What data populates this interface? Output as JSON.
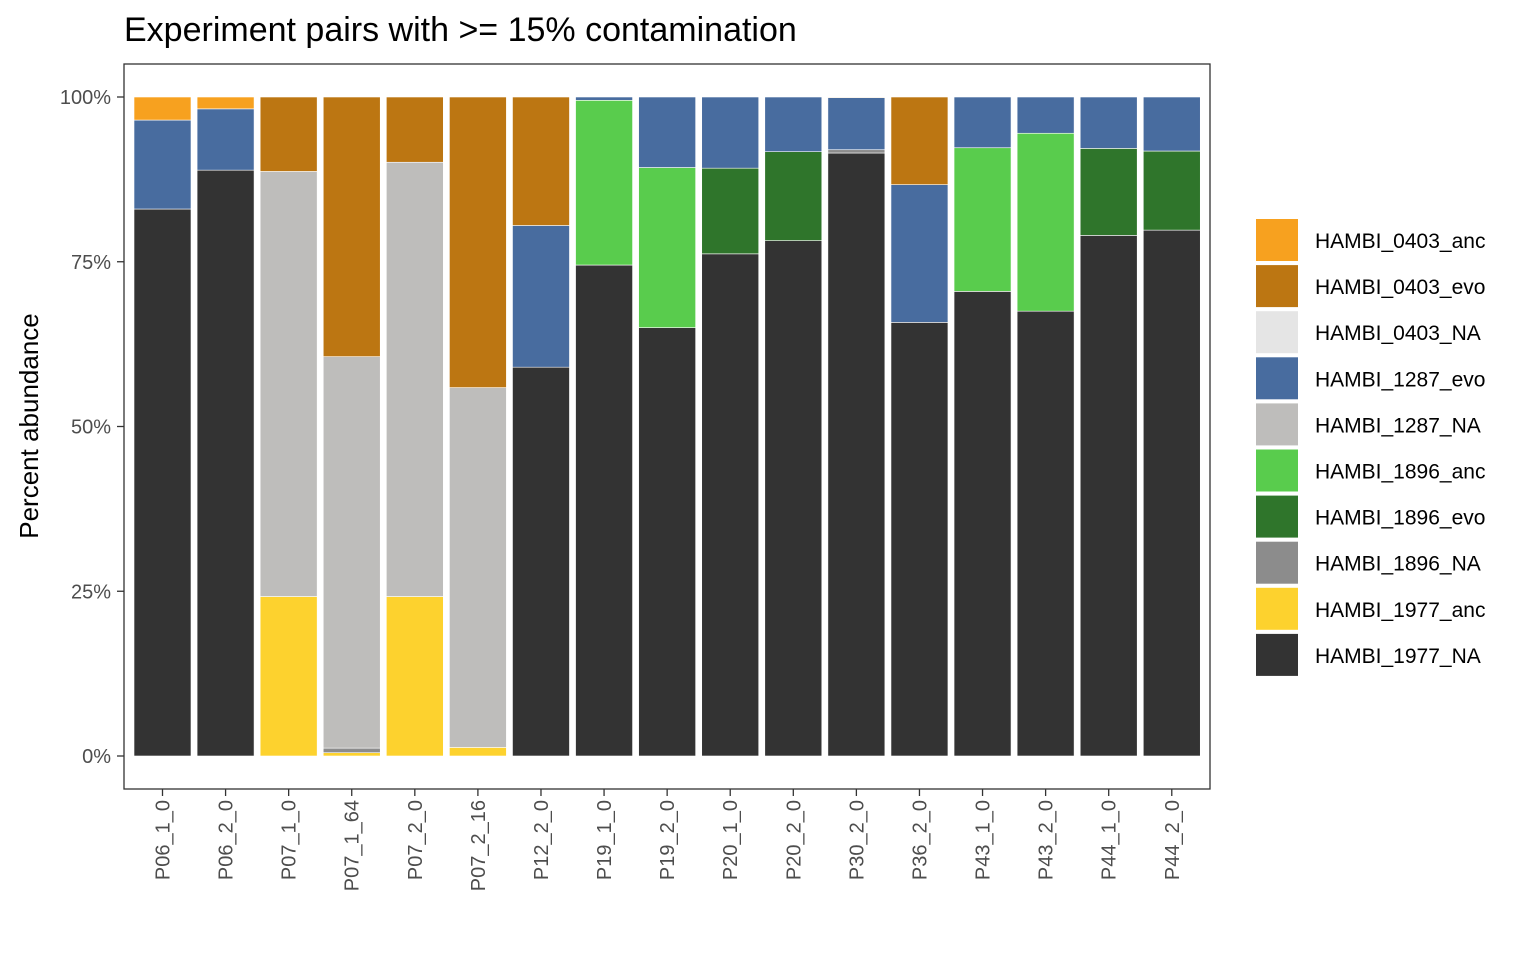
{
  "chart_data": {
    "type": "bar",
    "stacked": true,
    "title": "Experiment pairs with >= 15% contamination",
    "xlabel": "",
    "ylabel": "Percent abundance",
    "ylim": [
      0,
      100
    ],
    "y_ticks": [
      "0%",
      "25%",
      "50%",
      "75%",
      "100%"
    ],
    "y_tick_values": [
      0,
      25,
      50,
      75,
      100
    ],
    "legend_position": "right",
    "grid": false,
    "categories": [
      "P06_1_0",
      "P06_2_0",
      "P07_1_0",
      "P07_1_64",
      "P07_2_0",
      "P07_2_16",
      "P12_2_0",
      "P19_1_0",
      "P19_2_0",
      "P20_1_0",
      "P20_2_0",
      "P30_2_0",
      "P36_2_0",
      "P43_1_0",
      "P43_2_0",
      "P44_1_0",
      "P44_2_0"
    ],
    "series": [
      {
        "name": "HAMBI_1977_NA",
        "color": "#333333",
        "values": [
          83.0,
          88.9,
          0,
          0,
          0,
          0,
          59.0,
          74.5,
          65.0,
          76.2,
          78.2,
          91.5,
          65.8,
          70.5,
          67.5,
          79.0,
          79.8
        ]
      },
      {
        "name": "HAMBI_1977_anc",
        "color": "#FDD22E",
        "values": [
          0,
          0,
          24.2,
          0.5,
          24.2,
          1.3,
          0,
          0,
          0,
          0,
          0,
          0,
          0,
          0,
          0,
          0,
          0
        ]
      },
      {
        "name": "HAMBI_1896_NA",
        "color": "#8C8C8C",
        "values": [
          0,
          0,
          0,
          0.7,
          0,
          0,
          0,
          0,
          0,
          0,
          0,
          0.5,
          0,
          0,
          0,
          0,
          0
        ]
      },
      {
        "name": "HAMBI_1896_evo",
        "color": "#2F752B",
        "values": [
          0,
          0,
          0,
          0,
          0,
          0,
          0,
          0,
          0,
          13.0,
          13.5,
          0,
          0,
          0,
          0,
          13.2,
          12.0
        ]
      },
      {
        "name": "HAMBI_1896_anc",
        "color": "#59CC4D",
        "values": [
          0,
          0,
          0,
          0,
          0,
          0,
          0,
          25.0,
          24.3,
          0,
          0,
          0,
          0,
          21.8,
          27.0,
          0,
          0
        ]
      },
      {
        "name": "HAMBI_1287_NA",
        "color": "#BEBDBB",
        "values": [
          0,
          0,
          64.5,
          59.4,
          65.9,
          54.6,
          0,
          0,
          0,
          0,
          0,
          0,
          0,
          0,
          0,
          0,
          0
        ]
      },
      {
        "name": "HAMBI_1287_evo",
        "color": "#486C9F",
        "values": [
          13.5,
          9.3,
          0,
          0,
          0,
          0,
          21.5,
          0.5,
          10.7,
          10.8,
          8.3,
          7.9,
          20.9,
          7.7,
          5.5,
          7.8,
          8.2
        ]
      },
      {
        "name": "HAMBI_0403_NA",
        "color": "#E5E5E5",
        "values": [
          0,
          0,
          0,
          0,
          0,
          0,
          0,
          0,
          0,
          0,
          0,
          0,
          0,
          0,
          0,
          0,
          0
        ]
      },
      {
        "name": "HAMBI_0403_evo",
        "color": "#BC7612",
        "values": [
          0,
          0,
          11.3,
          39.4,
          9.9,
          44.1,
          19.5,
          0,
          0,
          0,
          0,
          0.1,
          13.3,
          0,
          0,
          0,
          0
        ]
      },
      {
        "name": "HAMBI_0403_anc",
        "color": "#F7A11F",
        "values": [
          3.5,
          1.8,
          0,
          0,
          0,
          0,
          0,
          0,
          0,
          0,
          0,
          0,
          0,
          0,
          0,
          0,
          0
        ]
      }
    ],
    "legend_order": [
      "HAMBI_0403_anc",
      "HAMBI_0403_evo",
      "HAMBI_0403_NA",
      "HAMBI_1287_evo",
      "HAMBI_1287_NA",
      "HAMBI_1896_anc",
      "HAMBI_1896_evo",
      "HAMBI_1896_NA",
      "HAMBI_1977_anc",
      "HAMBI_1977_NA"
    ]
  }
}
